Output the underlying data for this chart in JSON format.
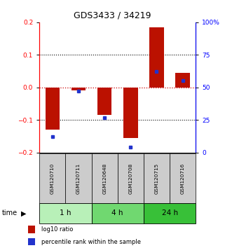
{
  "title": "GDS3433 / 34219",
  "samples": [
    "GSM120710",
    "GSM120711",
    "GSM120648",
    "GSM120708",
    "GSM120715",
    "GSM120716"
  ],
  "log10_ratio": [
    -0.13,
    -0.01,
    -0.085,
    -0.155,
    0.185,
    0.045
  ],
  "percentile_rank": [
    12,
    47,
    27,
    4,
    62,
    55
  ],
  "groups": [
    {
      "label": "1 h",
      "spans": [
        0,
        2
      ],
      "color": "#b8f0b8"
    },
    {
      "label": "4 h",
      "spans": [
        2,
        4
      ],
      "color": "#70d870"
    },
    {
      "label": "24 h",
      "spans": [
        4,
        6
      ],
      "color": "#38c038"
    }
  ],
  "ylim_left": [
    -0.2,
    0.2
  ],
  "ylim_right": [
    0,
    100
  ],
  "yticks_left": [
    -0.2,
    -0.1,
    0.0,
    0.1,
    0.2
  ],
  "yticks_right": [
    0,
    25,
    50,
    75,
    100
  ],
  "ytick_labels_right": [
    "0",
    "25",
    "50",
    "75",
    "100%"
  ],
  "bar_color_red": "#bb1100",
  "bar_color_blue": "#2233cc",
  "zero_line_color": "#cc0000",
  "dotted_line_color": "#000000",
  "bg_color": "#ffffff",
  "plot_bg_color": "#ffffff",
  "title_color": "#000000",
  "sample_bg_color": "#cccccc",
  "bar_width": 0.55
}
